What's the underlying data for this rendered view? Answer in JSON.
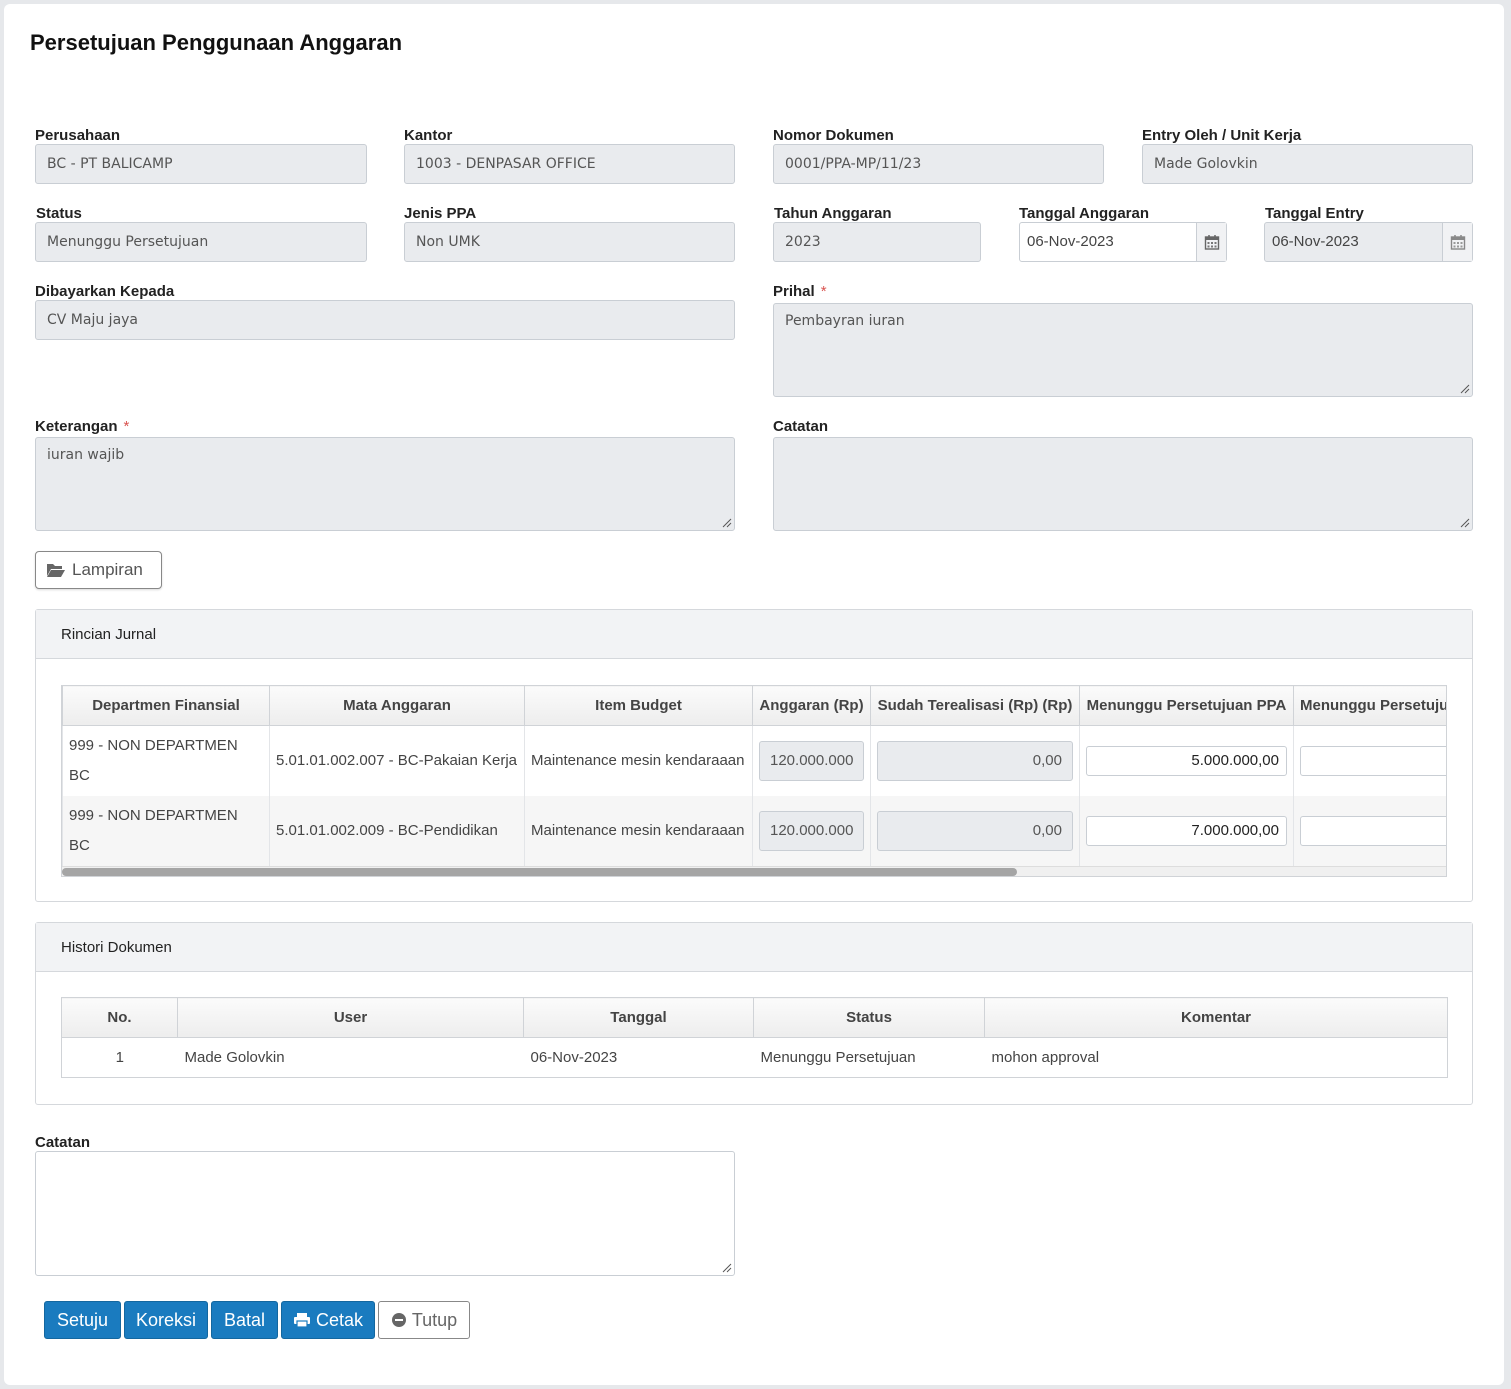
{
  "page": {
    "title": "Persetujuan Penggunaan Anggaran"
  },
  "form": {
    "perusahaan": {
      "label": "Perusahaan",
      "value": "BC - PT BALICAMP"
    },
    "kantor": {
      "label": "Kantor",
      "value": "1003 - DENPASAR OFFICE"
    },
    "nomor_dokumen": {
      "label": "Nomor Dokumen",
      "value": "0001/PPA-MP/11/23"
    },
    "entry_oleh": {
      "label": "Entry Oleh / Unit Kerja",
      "value": "Made Golovkin"
    },
    "status": {
      "label": "Status",
      "value": "Menunggu Persetujuan"
    },
    "jenis_ppa": {
      "label": "Jenis PPA",
      "value": "Non UMK"
    },
    "tahun_anggaran": {
      "label": "Tahun Anggaran",
      "value": "2023"
    },
    "tanggal_anggaran": {
      "label": "Tanggal Anggaran",
      "value": "06-Nov-2023"
    },
    "tanggal_entry": {
      "label": "Tanggal Entry",
      "value": "06-Nov-2023"
    },
    "dibayarkan_kepada": {
      "label": "Dibayarkan Kepada",
      "value": "CV Maju jaya"
    },
    "prihal": {
      "label": "Prihal",
      "required_mark": "*",
      "value": "Pembayran iuran"
    },
    "keterangan": {
      "label": "Keterangan",
      "required_mark": "*",
      "value": "iuran wajib"
    },
    "catatan": {
      "label": "Catatan",
      "value": ""
    },
    "lampiran_button": "Lampiran",
    "icons": {
      "calendar": "calendar-icon",
      "folder": "folder-open-icon",
      "print": "print-icon",
      "minus": "minus-circle-icon"
    }
  },
  "rincian": {
    "title": "Rincian Jurnal",
    "columns": [
      "Departmen Finansial",
      "Mata Anggaran",
      "Item Budget",
      "Anggaran (Rp)",
      "Sudah Terealisasi (Rp) (Rp)",
      "Menunggu Persetujuan PPA",
      "Menunggu Persetuju"
    ],
    "rows": [
      {
        "dept_line1": "999 - NON DEPARTMEN",
        "dept_line2": "BC",
        "mata": "5.01.01.002.007 - BC-Pakaian Kerja",
        "item": "Maintenance mesin kendaraaan",
        "anggaran": "120.000.000",
        "terealisasi": "0,00",
        "menunggu_ppa": "5.000.000,00",
        "menunggu2": ""
      },
      {
        "dept_line1": "999 - NON DEPARTMEN",
        "dept_line2": "BC",
        "mata": "5.01.01.002.009 - BC-Pendidikan",
        "item": "Maintenance mesin kendaraaan",
        "anggaran": "120.000.000",
        "terealisasi": "0,00",
        "menunggu_ppa": "7.000.000,00",
        "menunggu2": ""
      }
    ],
    "scroll_fraction": 0.69
  },
  "histori": {
    "title": "Histori Dokumen",
    "columns": [
      "No.",
      "User",
      "Tanggal",
      "Status",
      "Komentar"
    ],
    "rows": [
      {
        "no": "1",
        "user": "Made Golovkin",
        "tanggal": "06-Nov-2023",
        "status": "Menunggu Persetujuan",
        "komentar": "mohon approval"
      }
    ]
  },
  "catatan_bottom": {
    "label": "Catatan",
    "value": ""
  },
  "actions": {
    "setuju": "Setuju",
    "koreksi": "Koreksi",
    "batal": "Batal",
    "cetak": "Cetak",
    "tutup": "Tutup"
  },
  "colors": {
    "primary": "#1a7bbf",
    "required": "#d9534f",
    "readonly_bg": "#e9ebee"
  }
}
